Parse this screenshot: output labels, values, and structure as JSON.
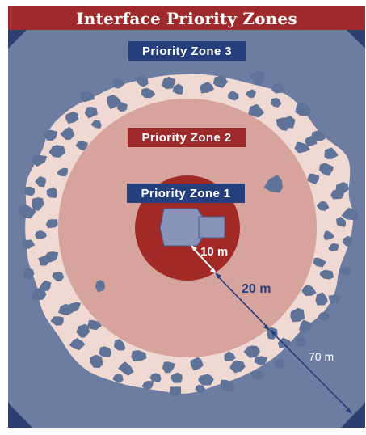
{
  "title": "Interface Priority Zones",
  "zones": {
    "zone3": "Priority Zone 3",
    "zone2": "Priority Zone 2",
    "zone1": "Priority Zone 1"
  },
  "distances": {
    "d10": "10 m",
    "d20": "20 m",
    "d70": "70 m"
  },
  "colors": {
    "title_bg": "#9e2a2b",
    "zone3_fill": "#6d7da2",
    "zone3_label_bg": "#253f7c",
    "zone2_fill": "#d7a39d",
    "zone2_label_bg": "#9e2a2b",
    "zone1_fill": "#a12a26",
    "zone1_label_bg": "#253f7c",
    "patchy_zone": "#f0d8d3",
    "tree_patch": "#5f7297",
    "house": "#8893ba",
    "corner_dark": "#2c3e72",
    "arrow": "#263f7f"
  }
}
